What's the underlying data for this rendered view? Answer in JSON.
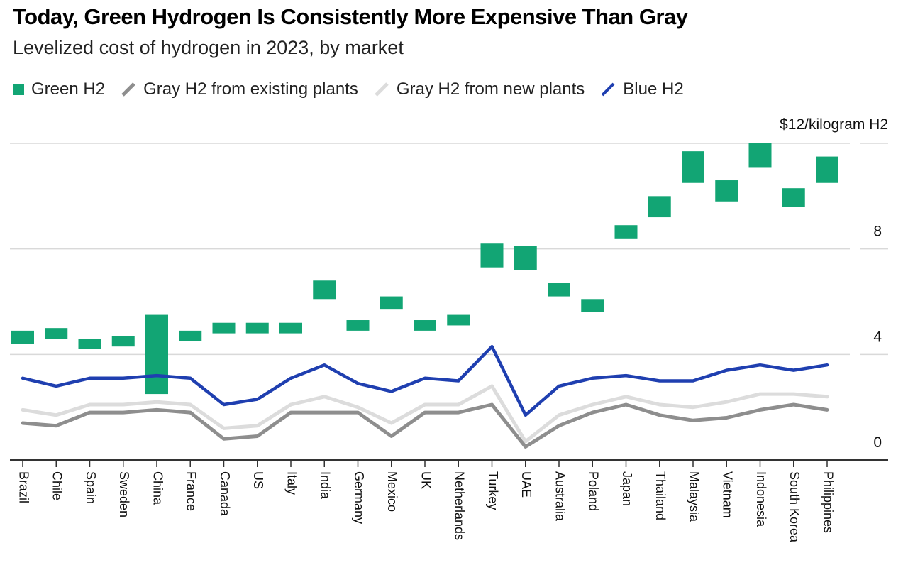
{
  "title": "Today, Green Hydrogen Is Consistently More Expensive Than Gray",
  "subtitle": "Levelized cost of hydrogen in 2023, by market",
  "colors": {
    "green": "#12a574",
    "gray_existing": "#8e8e8e",
    "gray_new": "#dcdcdc",
    "blue": "#1f3fb0",
    "grid": "#d9d9d9",
    "axis": "#333333"
  },
  "legend": [
    {
      "label": "Green H2",
      "kind": "box",
      "color_key": "green"
    },
    {
      "label": "Gray H2 from existing plants",
      "kind": "line",
      "color_key": "gray_existing"
    },
    {
      "label": "Gray H2 from new plants",
      "kind": "line",
      "color_key": "gray_new"
    },
    {
      "label": "Blue H2",
      "kind": "line",
      "color_key": "blue"
    }
  ],
  "chart_data": {
    "type": "line",
    "title": "Today, Green Hydrogen Is Consistently More Expensive Than Gray",
    "subtitle": "Levelized cost of hydrogen in 2023, by market",
    "ylabel": "$12/kilogram H2",
    "ylim": [
      0,
      12
    ],
    "yticks": [
      0,
      4,
      8,
      12
    ],
    "ytick_labels": [
      "0",
      "4",
      "8",
      "$12/kilogram H2"
    ],
    "grid": true,
    "legend_position": "top",
    "categories": [
      "Brazil",
      "Chile",
      "Spain",
      "Sweden",
      "China",
      "France",
      "Canada",
      "US",
      "Italy",
      "India",
      "Germany",
      "Mexico",
      "UK",
      "Netherlands",
      "Turkey",
      "UAE",
      "Australia",
      "Poland",
      "Japan",
      "Thailand",
      "Malaysia",
      "Vietnam",
      "Indonesia",
      "South Korea",
      "Philippines"
    ],
    "green_range": {
      "name": "Green H2",
      "low": [
        4.4,
        4.6,
        4.2,
        4.3,
        2.5,
        4.5,
        4.8,
        4.8,
        4.8,
        6.1,
        4.9,
        5.7,
        4.9,
        5.1,
        7.3,
        7.2,
        6.2,
        5.6,
        8.4,
        9.2,
        10.5,
        9.8,
        11.1,
        9.6,
        10.5
      ],
      "high": [
        4.9,
        5.0,
        4.6,
        4.7,
        5.5,
        4.9,
        5.2,
        5.2,
        5.2,
        6.8,
        5.3,
        6.2,
        5.3,
        5.5,
        8.2,
        8.1,
        6.7,
        6.1,
        8.9,
        10.0,
        11.7,
        10.6,
        12.0,
        10.3,
        11.5
      ]
    },
    "series": [
      {
        "name": "Blue H2",
        "values": [
          3.1,
          2.8,
          3.1,
          3.1,
          3.2,
          3.1,
          2.1,
          2.3,
          3.1,
          3.6,
          2.9,
          2.6,
          3.1,
          3.0,
          4.3,
          1.7,
          2.8,
          3.1,
          3.2,
          3.0,
          3.0,
          3.4,
          3.6,
          3.4,
          3.6
        ]
      },
      {
        "name": "Gray H2 from new plants",
        "values": [
          1.9,
          1.7,
          2.1,
          2.1,
          2.2,
          2.1,
          1.2,
          1.3,
          2.1,
          2.4,
          2.0,
          1.4,
          2.1,
          2.1,
          2.8,
          0.7,
          1.7,
          2.1,
          2.4,
          2.1,
          2.0,
          2.2,
          2.5,
          2.5,
          2.4
        ]
      },
      {
        "name": "Gray H2 from existing plants",
        "values": [
          1.4,
          1.3,
          1.8,
          1.8,
          1.9,
          1.8,
          0.8,
          0.9,
          1.8,
          1.8,
          1.8,
          0.9,
          1.8,
          1.8,
          2.1,
          0.5,
          1.3,
          1.8,
          2.1,
          1.7,
          1.5,
          1.6,
          1.9,
          2.1,
          1.9
        ]
      }
    ]
  }
}
